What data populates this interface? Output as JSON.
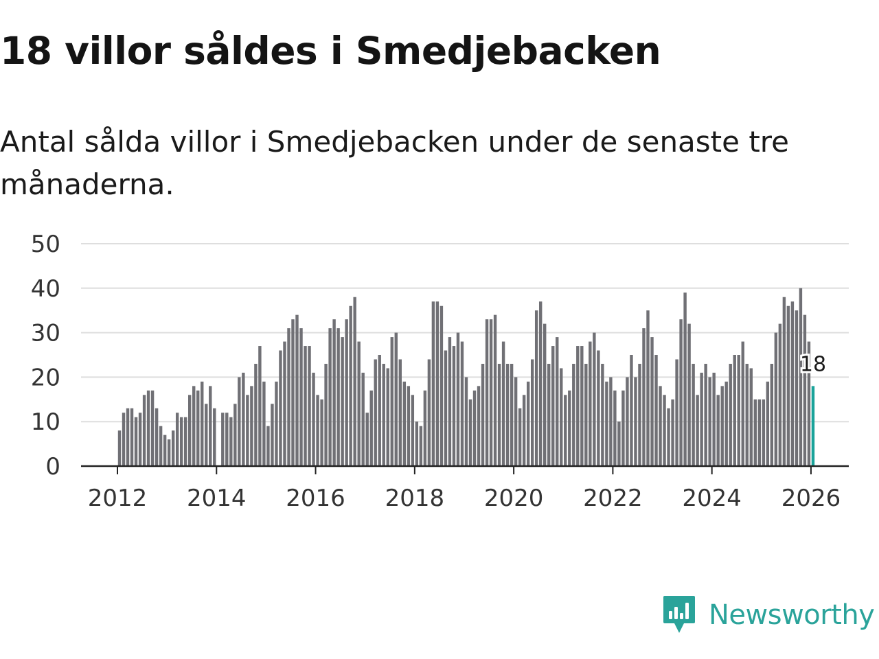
{
  "header": {
    "title": "18 villor såldes i Smedjebacken",
    "subtitle": "Antal sålda villor i Smedjebacken under de senaste tre månaderna."
  },
  "brand": {
    "name": "Newsworthy",
    "icon": "newsworthy-logo-icon"
  },
  "colors": {
    "bar": "#707075",
    "highlight": "#1aa39a",
    "grid": "#dedede",
    "axis": "#222222",
    "brand": "#2aa39a"
  },
  "chart_data": {
    "type": "bar",
    "title": "18 villor såldes i Smedjebacken",
    "subtitle": "Antal sålda villor i Smedjebacken under de senaste tre månaderna.",
    "xlabel": "",
    "ylabel": "",
    "ylim": [
      0,
      50
    ],
    "y_ticks": [
      "0",
      "10",
      "20",
      "30",
      "40",
      "50"
    ],
    "x_ticks": [
      {
        "label": "2012",
        "year": 2012
      },
      {
        "label": "2014",
        "year": 2014
      },
      {
        "label": "2016",
        "year": 2016
      },
      {
        "label": "2018",
        "year": 2018
      },
      {
        "label": "2020",
        "year": 2020
      },
      {
        "label": "2022",
        "year": 2022
      },
      {
        "label": "2024",
        "year": 2024
      },
      {
        "label": "2026",
        "year": 2026
      }
    ],
    "grid": true,
    "series_start": "2012-01",
    "frequency": "monthly (rolling 3-month total)",
    "values": [
      8,
      12,
      13,
      13,
      11,
      12,
      16,
      17,
      17,
      13,
      9,
      7,
      6,
      8,
      12,
      11,
      11,
      16,
      18,
      17,
      19,
      14,
      18,
      13,
      null,
      12,
      12,
      11,
      14,
      20,
      21,
      16,
      18,
      23,
      27,
      19,
      9,
      14,
      19,
      26,
      28,
      31,
      33,
      34,
      31,
      27,
      27,
      21,
      16,
      15,
      23,
      31,
      33,
      31,
      29,
      33,
      36,
      38,
      28,
      21,
      12,
      17,
      24,
      25,
      23,
      22,
      29,
      30,
      24,
      19,
      18,
      16,
      10,
      9,
      17,
      24,
      37,
      37,
      36,
      26,
      29,
      27,
      30,
      28,
      20,
      15,
      17,
      18,
      23,
      33,
      33,
      34,
      23,
      28,
      23,
      23,
      20,
      13,
      16,
      19,
      24,
      35,
      37,
      32,
      23,
      27,
      29,
      22,
      16,
      17,
      23,
      27,
      27,
      23,
      28,
      30,
      26,
      23,
      19,
      20,
      17,
      10,
      17,
      20,
      25,
      20,
      23,
      31,
      35,
      29,
      25,
      18,
      16,
      13,
      15,
      24,
      33,
      39,
      32,
      23,
      16,
      21,
      23,
      20,
      21,
      16,
      18,
      19,
      23,
      25,
      25,
      28,
      23,
      22,
      15,
      15,
      15,
      19,
      23,
      30,
      32,
      38,
      36,
      37,
      35,
      40,
      34,
      28,
      18
    ],
    "highlight": {
      "month": "2026-01",
      "value": 18,
      "label": "18"
    }
  }
}
